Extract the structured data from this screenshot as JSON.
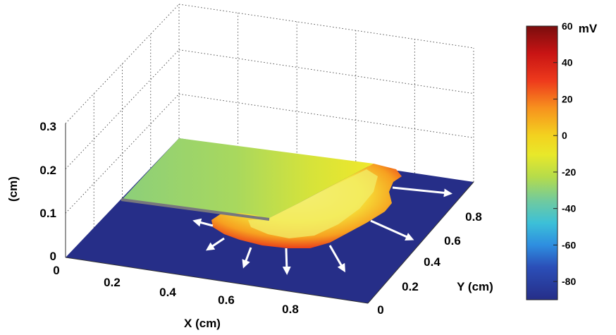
{
  "chart_data": {
    "type": "surface3d",
    "title": "",
    "xlabel": "X (cm)",
    "ylabel": "Y (cm)",
    "zlabel": "(cm)",
    "x_ticks": [
      "0",
      "0.2",
      "0.4",
      "0.6",
      "0.8"
    ],
    "y_ticks": [
      "0",
      "0.2",
      "0.4",
      "0.6",
      "0.8"
    ],
    "z_ticks": [
      "0",
      "0.1",
      "0.2",
      "0.3"
    ],
    "xlim": [
      0,
      1
    ],
    "ylim": [
      0,
      1
    ],
    "zlim": [
      0,
      0.3
    ],
    "grid": true,
    "colorbar": {
      "unit": "mV",
      "ticks": [
        "60",
        "40",
        "20",
        "0",
        "-20",
        "-40",
        "-60",
        "-80"
      ],
      "range": [
        -90,
        60
      ],
      "colormap": "jet"
    },
    "surface": {
      "z_level": 0,
      "resting_potential_mV": -85,
      "depolarized_region_potential_mV": -10,
      "wavefront_peak_mV": 50,
      "barrier_segment": {
        "x": [
          0,
          0.5
        ],
        "y": 0.5
      },
      "propagation_arrows": 8
    }
  }
}
